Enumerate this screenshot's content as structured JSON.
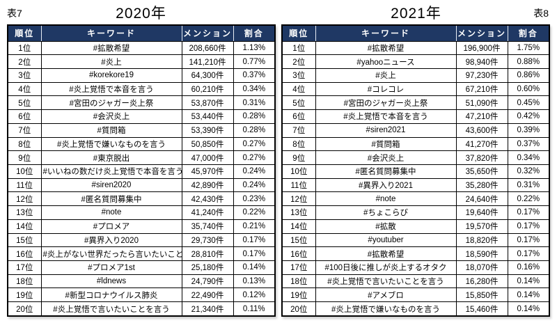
{
  "colors": {
    "header_bg": "#1F3864",
    "header_text": "#FFFFFF",
    "border": "#000000",
    "body_bg": "#FFFFFF"
  },
  "chart_data": [
    {
      "type": "table",
      "caption": "表7",
      "title": "2020年",
      "columns": [
        "順位",
        "キーワード",
        "メンション",
        "割合"
      ],
      "rows": [
        [
          "1位",
          "#拡散希望",
          "208,660件",
          "1.13%"
        ],
        [
          "2位",
          "#炎上",
          "141,210件",
          "0.77%"
        ],
        [
          "3位",
          "#korekore19",
          "64,300件",
          "0.37%"
        ],
        [
          "4位",
          "#炎上覚悟で本音を言う",
          "60,210件",
          "0.34%"
        ],
        [
          "5位",
          "#宮田のジャガー炎上祭",
          "53,870件",
          "0.31%"
        ],
        [
          "6位",
          "#会沢炎上",
          "53,440件",
          "0.28%"
        ],
        [
          "7位",
          "#質問箱",
          "53,390件",
          "0.28%"
        ],
        [
          "8位",
          "#炎上覚悟で嫌いなものを言う",
          "50,850件",
          "0.27%"
        ],
        [
          "9位",
          "#東京脱出",
          "47,000件",
          "0.27%"
        ],
        [
          "10位",
          "#いいねの数だけ炎上覚悟で本音を言う",
          "45,970件",
          "0.24%"
        ],
        [
          "11位",
          "#siren2020",
          "42,890件",
          "0.24%"
        ],
        [
          "12位",
          "#匿名質問募集中",
          "42,430件",
          "0.23%"
        ],
        [
          "13位",
          "#note",
          "41,240件",
          "0.22%"
        ],
        [
          "14位",
          "#プロメア",
          "35,740件",
          "0.21%"
        ],
        [
          "15位",
          "#異界入り2020",
          "29,730件",
          "0.17%"
        ],
        [
          "16位",
          "#炎上がない世界だったら言いたいこと",
          "28,810件",
          "0.17%"
        ],
        [
          "17位",
          "#プロメア1st",
          "25,180件",
          "0.14%"
        ],
        [
          "18位",
          "#ldnews",
          "24,790件",
          "0.13%"
        ],
        [
          "19位",
          "#新型コロナウイルス肺炎",
          "22,490件",
          "0.12%"
        ],
        [
          "20位",
          "#炎上覚悟で言いたいことを言う",
          "21,340件",
          "0.11%"
        ]
      ]
    },
    {
      "type": "table",
      "caption": "表8",
      "title": "2021年",
      "columns": [
        "順位",
        "キーワード",
        "メンション",
        "割合"
      ],
      "rows": [
        [
          "1位",
          "#拡散希望",
          "196,900件",
          "1.75%"
        ],
        [
          "2位",
          "#yahooニュース",
          "98,940件",
          "0.88%"
        ],
        [
          "3位",
          "#炎上",
          "97,230件",
          "0.86%"
        ],
        [
          "4位",
          "#コレコレ",
          "67,210件",
          "0.60%"
        ],
        [
          "5位",
          "#宮田のジャガー炎上祭",
          "51,090件",
          "0.45%"
        ],
        [
          "6位",
          "#炎上覚悟で本音を言う",
          "47,210件",
          "0.42%"
        ],
        [
          "7位",
          "#siren2021",
          "43,600件",
          "0.39%"
        ],
        [
          "8位",
          "#質問箱",
          "41,270件",
          "0.37%"
        ],
        [
          "9位",
          "#会沢炎上",
          "37,820件",
          "0.34%"
        ],
        [
          "10位",
          "#匿名質問募集中",
          "35,650件",
          "0.32%"
        ],
        [
          "11位",
          "#異界入り2021",
          "35,280件",
          "0.31%"
        ],
        [
          "12位",
          "#note",
          "24,640件",
          "0.22%"
        ],
        [
          "13位",
          "#ちょこらび",
          "19,640件",
          "0.17%"
        ],
        [
          "14位",
          "#拡散",
          "19,570件",
          "0.17%"
        ],
        [
          "15位",
          "#youtuber",
          "18,820件",
          "0.17%"
        ],
        [
          "16位",
          "#拡散希望",
          "18,590件",
          "0.17%"
        ],
        [
          "17位",
          "#100日後に推しが炎上するオタク",
          "18,070件",
          "0.16%"
        ],
        [
          "18位",
          "#炎上覚悟で言いたいことを言う",
          "16,280件",
          "0.14%"
        ],
        [
          "19位",
          "#アメブロ",
          "15,850件",
          "0.14%"
        ],
        [
          "20位",
          "#炎上覚悟で嫌いなものを言う",
          "15,460件",
          "0.14%"
        ]
      ]
    }
  ]
}
